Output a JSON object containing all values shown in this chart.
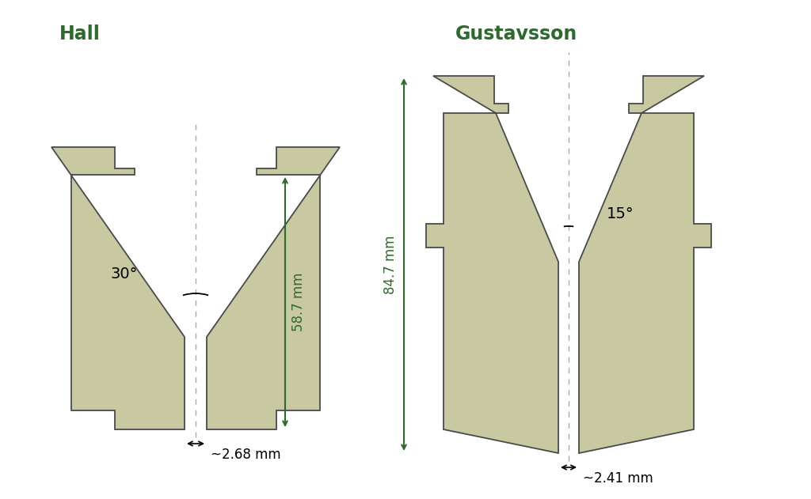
{
  "bg_color": "#ffffff",
  "fill_color": "#c8c9a0",
  "edge_color": "#4a4a4a",
  "dark_green": "#2d6a2d",
  "dashed_color": "#aaaaaa",
  "title_hall": "Hall",
  "title_gustavsson": "Gustavsson",
  "title_fontsize": 17,
  "label_fontsize": 12,
  "angle_hall": "30°",
  "angle_gustavsson": "15°",
  "dim_hall_bottom": "~2.68 mm",
  "dim_gustavsson_bottom": "~2.41 mm",
  "dim_hall_height": "58.7 mm",
  "dim_gustavsson_height": "84.7 mm"
}
